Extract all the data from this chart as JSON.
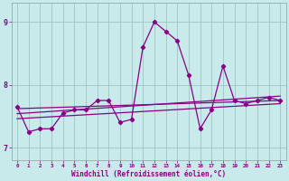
{
  "xlabel": "Windchill (Refroidissement éolien,°C)",
  "xlim": [
    -0.5,
    23.5
  ],
  "ylim": [
    6.8,
    9.3
  ],
  "xtick_vals": [
    0,
    1,
    2,
    3,
    4,
    5,
    6,
    7,
    8,
    9,
    10,
    11,
    12,
    13,
    14,
    15,
    16,
    17,
    18,
    19,
    20,
    21,
    22,
    23
  ],
  "xtick_labels": [
    "0",
    "1",
    "2",
    "3",
    "4",
    "5",
    "6",
    "7",
    "8",
    "9",
    "10",
    "11",
    "12",
    "13",
    "14",
    "15",
    "16",
    "17",
    "18",
    "19",
    "20",
    "21",
    "22",
    "23"
  ],
  "ytick_vals": [
    7,
    8,
    9
  ],
  "ytick_labels": [
    "7",
    "8",
    "9"
  ],
  "background_color": "#c8eaea",
  "line_color": "#880088",
  "grid_color": "#99bbbb",
  "xlabel_color": "#880088",
  "tick_color": "#880088",
  "series1_x": [
    0,
    1,
    2,
    3,
    4,
    5,
    6,
    7,
    8,
    9,
    10,
    11,
    12,
    13,
    14,
    15,
    16,
    17,
    18,
    19,
    20,
    21,
    22,
    23
  ],
  "series1_y": [
    7.65,
    7.25,
    7.3,
    7.3,
    7.55,
    7.6,
    7.6,
    7.75,
    7.75,
    7.4,
    7.45,
    8.6,
    9.0,
    8.85,
    8.7,
    8.15,
    7.3,
    7.6,
    8.3,
    7.75,
    7.7,
    7.75,
    7.8,
    7.75
  ],
  "trend1_x": [
    0,
    23
  ],
  "trend1_y": [
    7.62,
    7.75
  ],
  "trend2_x": [
    0,
    23
  ],
  "trend2_y": [
    7.54,
    7.82
  ],
  "trend3_x": [
    0,
    23
  ],
  "trend3_y": [
    7.46,
    7.7
  ]
}
